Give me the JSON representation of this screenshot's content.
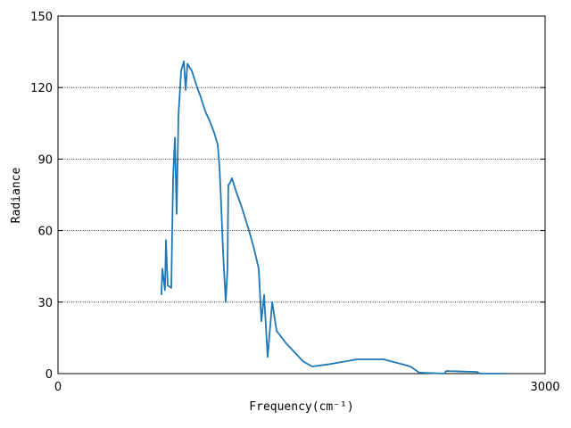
{
  "chart_data": {
    "type": "line",
    "xlabel": "Frequency(cm⁻¹)",
    "ylabel": "Radiance",
    "xlim": [
      0,
      3000
    ],
    "xticks": [
      0,
      3000
    ],
    "ylim": [
      0,
      150
    ],
    "yticks": [
      0,
      30,
      60,
      90,
      120,
      150
    ],
    "grid": true,
    "series": [
      {
        "name": "Radiance",
        "color": "#1f77b4",
        "x": [
          637,
          643,
          659,
          665,
          676,
          698,
          709,
          720,
          731,
          742,
          758,
          775,
          786,
          797,
          824,
          852,
          879,
          907,
          934,
          962,
          984,
          995,
          1005,
          1016,
          1033,
          1044,
          1049,
          1060,
          1071,
          1099,
          1126,
          1154,
          1181,
          1209,
          1236,
          1253,
          1269,
          1291,
          1319,
          1346,
          1401,
          1456,
          1511,
          1566,
          1676,
          1841,
          2005,
          2115,
          2170,
          2225,
          2379,
          2390,
          2582,
          2599,
          2753
        ],
        "values": [
          33,
          44,
          35,
          56,
          37,
          36,
          82,
          99,
          67,
          108,
          127,
          131,
          119,
          130,
          127,
          121,
          116,
          110,
          106,
          101,
          96,
          86,
          71,
          52,
          30,
          44,
          79,
          80,
          82,
          76,
          71,
          65,
          59,
          52,
          44,
          22,
          33,
          7,
          30,
          18,
          13,
          9,
          5,
          3,
          4,
          6,
          6,
          4,
          3,
          0.4,
          0,
          1.1,
          0.7,
          0,
          0
        ]
      }
    ]
  }
}
